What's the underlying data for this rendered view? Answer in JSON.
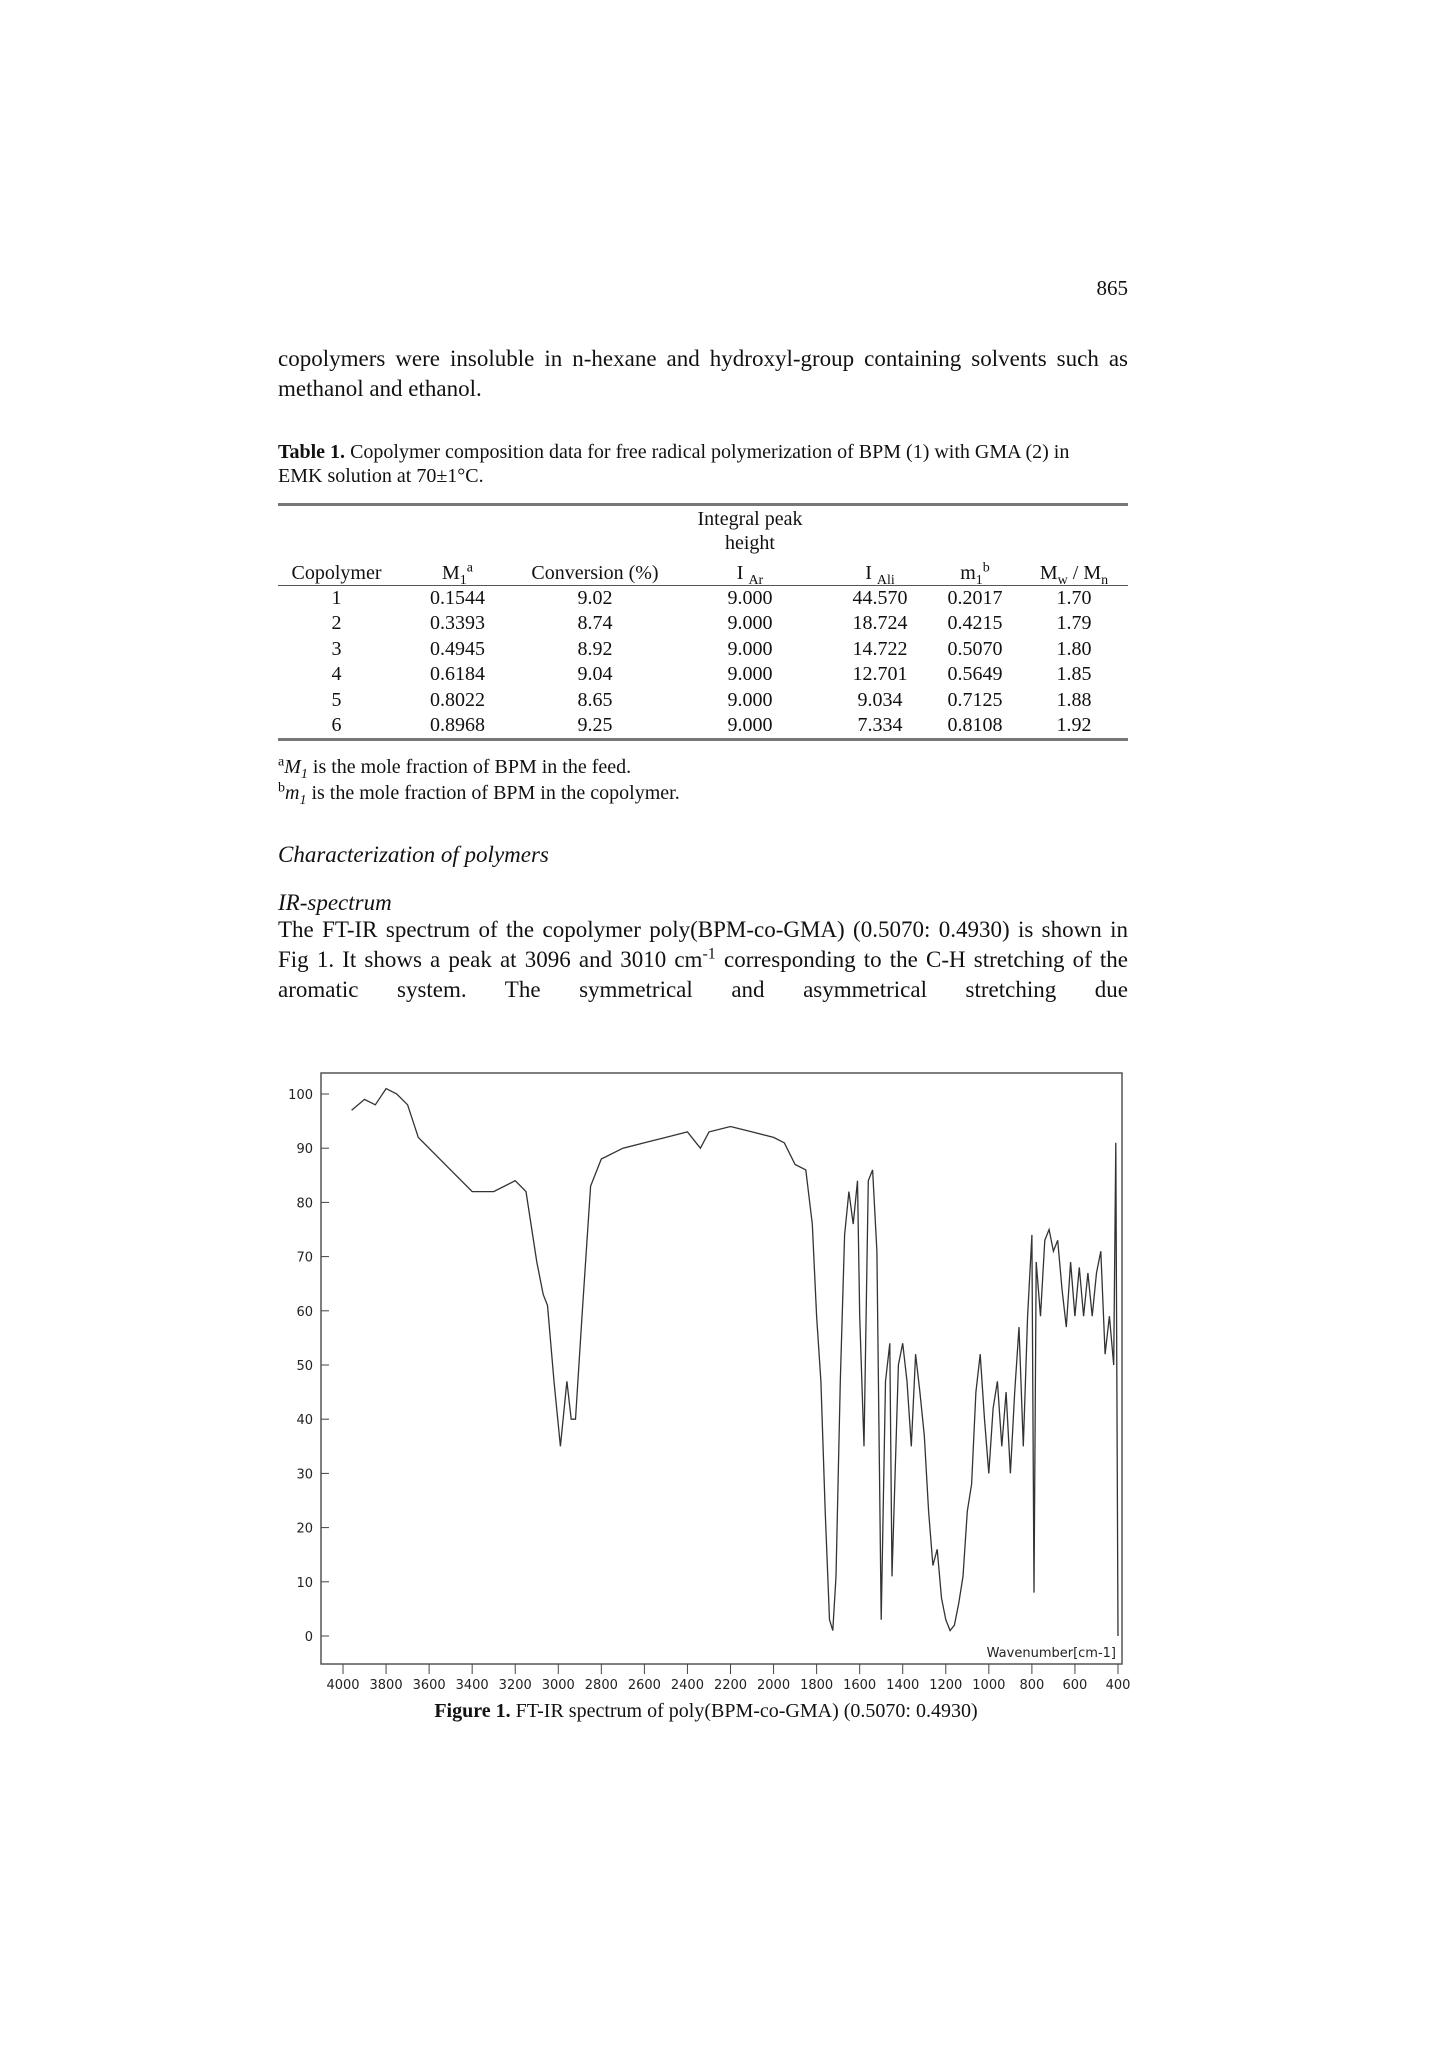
{
  "page_number": "865",
  "paragraph1": [
    {
      "t": "copolymers were insoluble in n-hexane and hydroxyl-group containing solvents such as methanol and ethanol."
    }
  ],
  "table_caption": [
    {
      "b": "Table 1."
    },
    {
      "t": " Copolymer composition data for free radical polymerization of BPM (1) with GMA (2) in EMK solution at 70±1°C."
    }
  ],
  "table": {
    "header_group": [
      "Integral peak",
      "height"
    ],
    "header": [
      [
        {
          "t": "Copolymer"
        }
      ],
      [
        {
          "t": "M"
        },
        {
          "sub": "1"
        },
        {
          "sup": "a"
        }
      ],
      [
        {
          "t": "Conversion (%)"
        }
      ],
      [
        {
          "t": "I "
        },
        {
          "sub": "Ar"
        }
      ],
      [
        {
          "t": "I "
        },
        {
          "sub": "Ali"
        }
      ],
      [
        {
          "t": "m"
        },
        {
          "sub": "1"
        },
        {
          "sup": "b"
        }
      ],
      [
        {
          "t": "M"
        },
        {
          "sub": "w"
        },
        {
          "t": " / M"
        },
        {
          "sub": "n"
        }
      ]
    ],
    "rows": [
      [
        "1",
        "0.1544",
        "9.02",
        "9.000",
        "44.570",
        "0.2017",
        "1.70"
      ],
      [
        "2",
        "0.3393",
        "8.74",
        "9.000",
        "18.724",
        "0.4215",
        "1.79"
      ],
      [
        "3",
        "0.4945",
        "8.92",
        "9.000",
        "14.722",
        "0.5070",
        "1.80"
      ],
      [
        "4",
        "0.6184",
        "9.04",
        "9.000",
        "12.701",
        "0.5649",
        "1.85"
      ],
      [
        "5",
        "0.8022",
        "8.65",
        "9.000",
        "9.034",
        "0.7125",
        "1.88"
      ],
      [
        "6",
        "0.8968",
        "9.25",
        "9.000",
        "7.334",
        "0.8108",
        "1.92"
      ]
    ],
    "footnotes": [
      [
        {
          "sup": "a"
        },
        {
          "i": "M"
        },
        {
          "isub": "1"
        },
        {
          "t": " is the mole fraction of  BPM in the feed."
        }
      ],
      [
        {
          "sup": "b"
        },
        {
          "i": "m"
        },
        {
          "isub": "1"
        },
        {
          "t": " is the mole fraction of  BPM in the copolymer."
        }
      ]
    ]
  },
  "section_heading": "Characterization of polymers",
  "subsection_heading": "IR-spectrum",
  "paragraph2": [
    {
      "t": "The FT-IR spectrum of the copolymer poly(BPM-co-GMA) (0.5070: 0.4930) is shown in Fig 1. It shows a peak at 3096 and 3010 cm"
    },
    {
      "sup": "-1"
    },
    {
      "t": " corresponding to the C-H stretching of the aromatic system. The symmetrical and asymmetrical stretching due"
    }
  ],
  "chart_data": {
    "type": "line",
    "x_label": "Wavenumber[cm-1]",
    "color": "#333333",
    "xlim": [
      4000,
      400
    ],
    "ylim": [
      0,
      100
    ],
    "xticks": [
      4000,
      3800,
      3600,
      3400,
      3200,
      3000,
      2800,
      2600,
      2400,
      2200,
      2000,
      1800,
      1600,
      1400,
      1200,
      1000,
      800,
      600,
      400
    ],
    "yticks": [
      0,
      10,
      20,
      30,
      40,
      50,
      60,
      70,
      80,
      90,
      100
    ],
    "x": [
      3960,
      3900,
      3850,
      3800,
      3750,
      3700,
      3650,
      3500,
      3400,
      3300,
      3200,
      3150,
      3100,
      3070,
      3050,
      3020,
      2990,
      2960,
      2940,
      2920,
      2890,
      2850,
      2800,
      2700,
      2600,
      2500,
      2400,
      2360,
      2340,
      2300,
      2200,
      2100,
      2000,
      1950,
      1900,
      1850,
      1820,
      1800,
      1780,
      1760,
      1740,
      1725,
      1710,
      1690,
      1670,
      1650,
      1630,
      1610,
      1600,
      1580,
      1560,
      1540,
      1520,
      1500,
      1480,
      1460,
      1450,
      1420,
      1400,
      1380,
      1360,
      1340,
      1320,
      1300,
      1280,
      1260,
      1240,
      1220,
      1200,
      1180,
      1160,
      1140,
      1120,
      1100,
      1080,
      1060,
      1040,
      1020,
      1000,
      980,
      960,
      940,
      920,
      900,
      880,
      860,
      840,
      820,
      800,
      790,
      780,
      760,
      740,
      720,
      700,
      680,
      660,
      640,
      620,
      600,
      580,
      560,
      540,
      520,
      500,
      480,
      460,
      440,
      420,
      410,
      400
    ],
    "values": [
      97,
      99,
      98,
      101,
      100,
      98,
      92,
      86,
      82,
      82,
      84,
      82,
      69,
      63,
      61,
      47,
      35,
      47,
      40,
      40,
      59,
      83,
      88,
      90,
      91,
      92,
      93,
      91,
      90,
      93,
      94,
      93,
      92,
      91,
      87,
      86,
      76,
      59,
      47,
      23,
      3,
      1,
      11,
      47,
      74,
      82,
      76,
      84,
      59,
      35,
      84,
      86,
      71,
      3,
      47,
      54,
      11,
      50,
      54,
      47,
      35,
      52,
      45,
      37,
      23,
      13,
      16,
      7,
      3,
      1,
      2,
      6,
      11,
      23,
      28,
      45,
      52,
      40,
      30,
      42,
      47,
      35,
      45,
      30,
      45,
      57,
      35,
      59,
      74,
      8,
      69,
      59,
      73,
      75,
      71,
      73,
      64,
      57,
      69,
      59,
      68,
      59,
      67,
      59,
      67,
      71,
      52,
      59,
      50,
      91,
      0
    ]
  },
  "figure_caption": [
    {
      "b": "Figure 1."
    },
    {
      "t": " FT-IR spectrum of poly(BPM-co-GMA) (0.5070: 0.4930)"
    }
  ]
}
